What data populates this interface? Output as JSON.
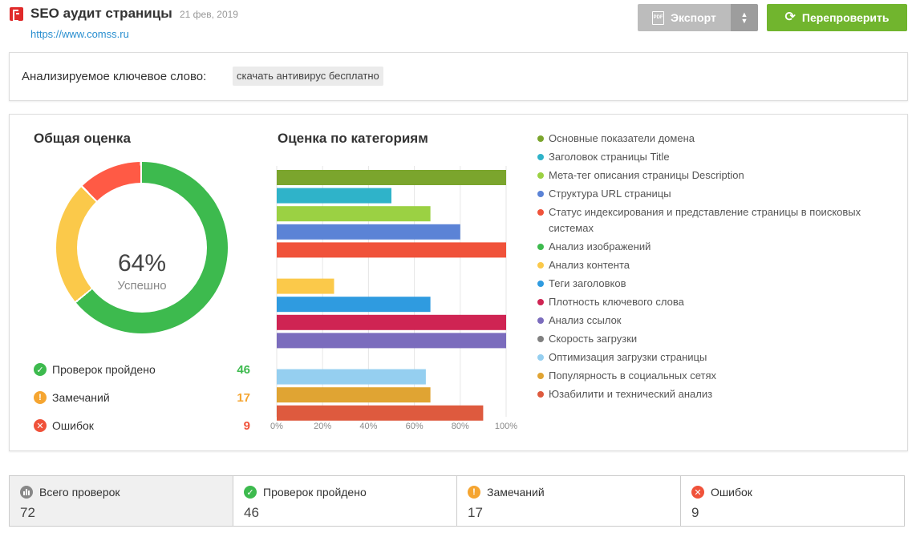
{
  "header": {
    "title": "SEO аудит страницы",
    "date": "21 фев, 2019",
    "url": "https://www.comss.ru",
    "export_label": "Экспорт",
    "recheck_label": "Перепроверить"
  },
  "keyword": {
    "label": "Анализируемое ключевое слово:",
    "value": "скачать антивирус бесплатно"
  },
  "overall": {
    "title": "Общая оценка",
    "percent": "64%",
    "status": "Успешно",
    "stats": [
      {
        "label": "Проверок пройдено",
        "value": "46",
        "color": "#3dba4e"
      },
      {
        "label": "Замечаний",
        "value": "17",
        "color": "#f5a531"
      },
      {
        "label": "Ошибок",
        "value": "9",
        "color": "#f0523a"
      }
    ]
  },
  "categories_title": "Оценка по категориям",
  "chart_data": {
    "type": "bar",
    "orientation": "horizontal",
    "xlim": [
      0,
      100
    ],
    "tick_labels": [
      "0%",
      "20%",
      "40%",
      "60%",
      "80%",
      "100%"
    ],
    "grid": true,
    "categories": [
      "Основные показатели домена",
      "Заголовок страницы Title",
      "Мета-тег описания страницы Description",
      "Структура URL страницы",
      "Статус индексирования и представление страницы в поисковых системах",
      "Анализ изображений",
      "Анализ контента",
      "Теги заголовков",
      "Плотность ключевого слова",
      "Анализ ссылок",
      "Скорость загрузки",
      "Оптимизация загрузки страницы",
      "Популярность в социальных сетях",
      "Юзабилити и технический анализ"
    ],
    "values": [
      100,
      50,
      67,
      80,
      100,
      null,
      25,
      67,
      100,
      100,
      null,
      65,
      67,
      90
    ],
    "colors": [
      "#7ba52d",
      "#2fb3c9",
      "#9bd143",
      "#5b83d6",
      "#f0523a",
      "#3dba4e",
      "#fbc94a",
      "#2f9be0",
      "#cf2453",
      "#7b6cbd",
      "#808080",
      "#95cff0",
      "#e0a433",
      "#de5a3e"
    ]
  },
  "summary": [
    {
      "label": "Всего проверок",
      "value": "72"
    },
    {
      "label": "Проверок пройдено",
      "value": "46"
    },
    {
      "label": "Замечаний",
      "value": "17"
    },
    {
      "label": "Ошибок",
      "value": "9"
    }
  ]
}
